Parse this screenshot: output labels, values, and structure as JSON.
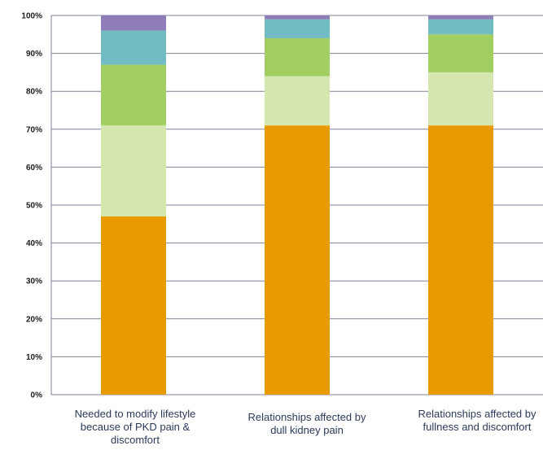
{
  "chart_data": {
    "type": "bar",
    "stacked": true,
    "percent": true,
    "categories": [
      [
        "Needed to modify lifestyle",
        "because of PKD pain &",
        "discomfort"
      ],
      [
        "Relationships affected by",
        "dull kidney pain"
      ],
      [
        "Relationships affected by",
        "fullness and discomfort"
      ]
    ],
    "series": [
      {
        "color": "#E89B00",
        "values": [
          47,
          71,
          71
        ]
      },
      {
        "color": "#D5E6AF",
        "values": [
          24,
          13,
          14
        ]
      },
      {
        "color": "#A3CE62",
        "values": [
          16,
          10,
          10
        ]
      },
      {
        "color": "#72BDC3",
        "values": [
          9,
          5,
          4
        ]
      },
      {
        "color": "#8E7DB6",
        "values": [
          4,
          1,
          1
        ]
      }
    ],
    "ylim": [
      0,
      100
    ],
    "yticks": [
      "0%",
      "10%",
      "20%",
      "30%",
      "40%",
      "50%",
      "60%",
      "70%",
      "80%",
      "90%",
      "100%"
    ],
    "grid": true,
    "legend": "none",
    "title": "",
    "xlabel": "",
    "ylabel": ""
  },
  "colors": {
    "gridline": "#7f8299",
    "axis": "#7f8299"
  }
}
